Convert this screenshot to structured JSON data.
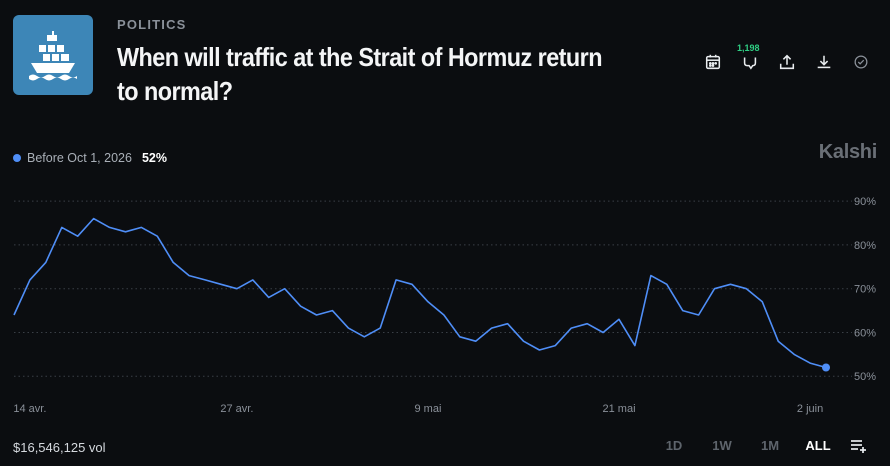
{
  "market": {
    "category": "POLITICS",
    "title": "When will traffic at the Strait of Hormuz return to normal?",
    "image_icon": "cargo-ship-icon"
  },
  "actions": {
    "icons": [
      "calendar-icon",
      "comment-icon",
      "share-icon",
      "download-icon",
      "check-icon"
    ],
    "comment_count": "1,198"
  },
  "legend": {
    "name": "Before Oct 1, 2026",
    "value": "52%",
    "color": "#4f8ef7"
  },
  "brand": "Kalshi",
  "footer": {
    "volume": "$16,546,125 vol",
    "ranges": [
      "1D",
      "1W",
      "1M",
      "ALL"
    ],
    "active_range": "ALL",
    "menu_icon": "list-add-icon"
  },
  "chart_data": {
    "type": "line",
    "x_tick_labels": [
      "14 avr.",
      "27 avr.",
      "9 mai",
      "21 mai",
      "2 juin"
    ],
    "y_tick_labels": [
      "90%",
      "80%",
      "70%",
      "60%",
      "50%"
    ],
    "y_ticks": [
      90,
      80,
      70,
      60,
      50
    ],
    "ylim": [
      48,
      93
    ],
    "grid": true,
    "series": [
      {
        "name": "Before Oct 1, 2026",
        "color": "#4f8ef7",
        "x": [
          "Apr 13",
          "Apr 14",
          "Apr 15",
          "Apr 16",
          "Apr 17",
          "Apr 18",
          "Apr 19",
          "Apr 20",
          "Apr 21",
          "Apr 22",
          "Apr 23",
          "Apr 24",
          "Apr 25",
          "Apr 26",
          "Apr 27",
          "Apr 28",
          "Apr 29",
          "Apr 30",
          "May 1",
          "May 2",
          "May 3",
          "May 4",
          "May 5",
          "May 6",
          "May 7",
          "May 8",
          "May 9",
          "May 10",
          "May 11",
          "May 12",
          "May 13",
          "May 14",
          "May 15",
          "May 16",
          "May 17",
          "May 18",
          "May 19",
          "May 20",
          "May 21",
          "May 22",
          "May 23",
          "May 24",
          "May 25",
          "May 26",
          "May 27",
          "May 28",
          "May 29",
          "May 30",
          "May 31",
          "Jun 1",
          "Jun 2",
          "Jun 3"
        ],
        "y": [
          64,
          72,
          76,
          84,
          82,
          86,
          84,
          83,
          84,
          82,
          76,
          73,
          72,
          71,
          70,
          72,
          68,
          70,
          66,
          64,
          65,
          61,
          59,
          61,
          72,
          71,
          67,
          64,
          59,
          58,
          61,
          62,
          58,
          56,
          57,
          61,
          62,
          60,
          63,
          57,
          73,
          71,
          65,
          64,
          70,
          71,
          70,
          67,
          58,
          55,
          53,
          52
        ]
      }
    ]
  }
}
